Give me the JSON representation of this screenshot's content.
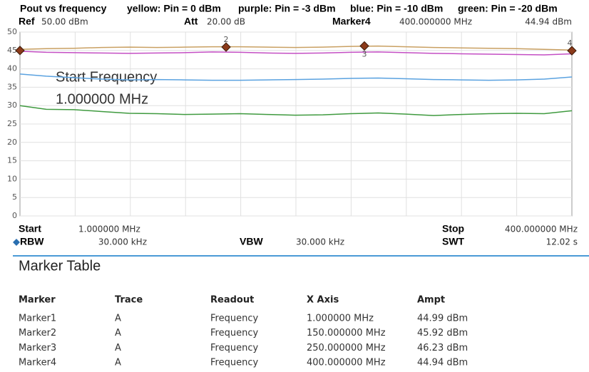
{
  "header": {
    "ref_label": "Ref",
    "ref_value": "50.00 dBm",
    "att_label": "Att",
    "att_value": "20.00 dB",
    "marker_label": "Marker4",
    "marker_x": "400.000000 MHz",
    "marker_y": "44.94 dBm"
  },
  "chart_data": {
    "type": "line",
    "title": "Pout vs frequency",
    "x": [
      1,
      20,
      40,
      60,
      80,
      100,
      120,
      140,
      160,
      180,
      200,
      220,
      240,
      260,
      280,
      300,
      320,
      340,
      360,
      380,
      400
    ],
    "series": [
      {
        "name": "yellow: Pin = 0 dBm",
        "color": "#c9a062",
        "values": [
          45.3,
          45.5,
          45.6,
          45.8,
          45.9,
          45.8,
          45.9,
          46.0,
          46.0,
          45.9,
          45.8,
          45.9,
          46.1,
          46.2,
          46.0,
          45.8,
          45.7,
          45.6,
          45.5,
          45.3,
          45.1
        ]
      },
      {
        "name": "purple: Pin = -3 dBm",
        "color": "#c44fc4",
        "values": [
          44.8,
          44.5,
          44.4,
          44.3,
          44.2,
          44.3,
          44.4,
          44.6,
          44.5,
          44.3,
          44.2,
          44.3,
          44.5,
          44.6,
          44.4,
          44.2,
          44.1,
          44.0,
          43.9,
          43.8,
          44.1
        ]
      },
      {
        "name": "blue: Pin = -10 dBm",
        "color": "#5aa2e0",
        "values": [
          38.6,
          38.0,
          37.6,
          37.2,
          37.0,
          37.1,
          37.0,
          36.9,
          36.9,
          37.0,
          37.1,
          37.2,
          37.4,
          37.5,
          37.3,
          37.1,
          37.0,
          36.9,
          37.0,
          37.2,
          37.8
        ]
      },
      {
        "name": "green: Pin = -20 dBm",
        "color": "#3f9a3f",
        "values": [
          30.0,
          29.0,
          28.9,
          28.4,
          27.9,
          27.8,
          27.6,
          27.7,
          27.8,
          27.6,
          27.4,
          27.5,
          27.8,
          28.0,
          27.7,
          27.3,
          27.6,
          27.8,
          27.9,
          27.8,
          28.6
        ]
      }
    ],
    "xlim": [
      1,
      400
    ],
    "x_divisions": 10,
    "ylim": [
      0,
      50
    ],
    "yticks": [
      0,
      5,
      10,
      15,
      20,
      25,
      30,
      35,
      40,
      45,
      50
    ],
    "grid": true,
    "annotations": [
      "Start Frequency",
      "1.000000 MHz"
    ],
    "markers": [
      {
        "x": 1,
        "y": 44.99
      },
      {
        "x": 150,
        "y": 45.92,
        "label": "2"
      },
      {
        "x": 250,
        "y": 46.23,
        "label": "3"
      },
      {
        "x": 400,
        "y": 44.94,
        "label": "4"
      }
    ]
  },
  "footer": {
    "start_label": "Start",
    "start_value": "1.000000 MHz",
    "stop_label": "Stop",
    "stop_value": "400.000000 MHz",
    "rbw_label": "RBW",
    "rbw_value": "30.000 kHz",
    "vbw_label": "VBW",
    "vbw_value": "30.000 kHz",
    "swt_label": "SWT",
    "swt_value": "12.02 s"
  },
  "table": {
    "title": "Marker Table",
    "columns": [
      "Marker",
      "Trace",
      "Readout",
      "X Axis",
      "Ampt"
    ],
    "rows": [
      [
        "Marker1",
        "A",
        "Frequency",
        "1.000000 MHz",
        "44.99 dBm"
      ],
      [
        "Marker2",
        "A",
        "Frequency",
        "150.000000 MHz",
        "45.92 dBm"
      ],
      [
        "Marker3",
        "A",
        "Frequency",
        "250.000000 MHz",
        "46.23 dBm"
      ],
      [
        "Marker4",
        "A",
        "Frequency",
        "400.000000 MHz",
        "44.94 dBm"
      ]
    ]
  }
}
